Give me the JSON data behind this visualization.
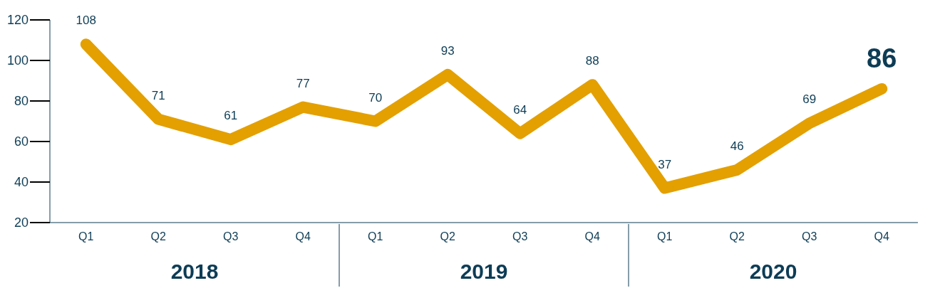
{
  "chart_data": {
    "type": "line",
    "categories": [
      "Q1",
      "Q2",
      "Q3",
      "Q4",
      "Q1",
      "Q2",
      "Q3",
      "Q4",
      "Q1",
      "Q2",
      "Q3",
      "Q4"
    ],
    "series": [
      {
        "color": "#e3a000",
        "values": [
          108,
          71,
          61,
          77,
          70,
          93,
          64,
          88,
          37,
          46,
          69,
          86
        ]
      }
    ],
    "ylim": [
      20,
      120
    ],
    "yticks": [
      20,
      40,
      60,
      80,
      100,
      120
    ],
    "annotations": [
      "2018",
      "2019",
      "2020"
    ],
    "data_labels": true,
    "marker": "none",
    "line_style": "solid"
  }
}
